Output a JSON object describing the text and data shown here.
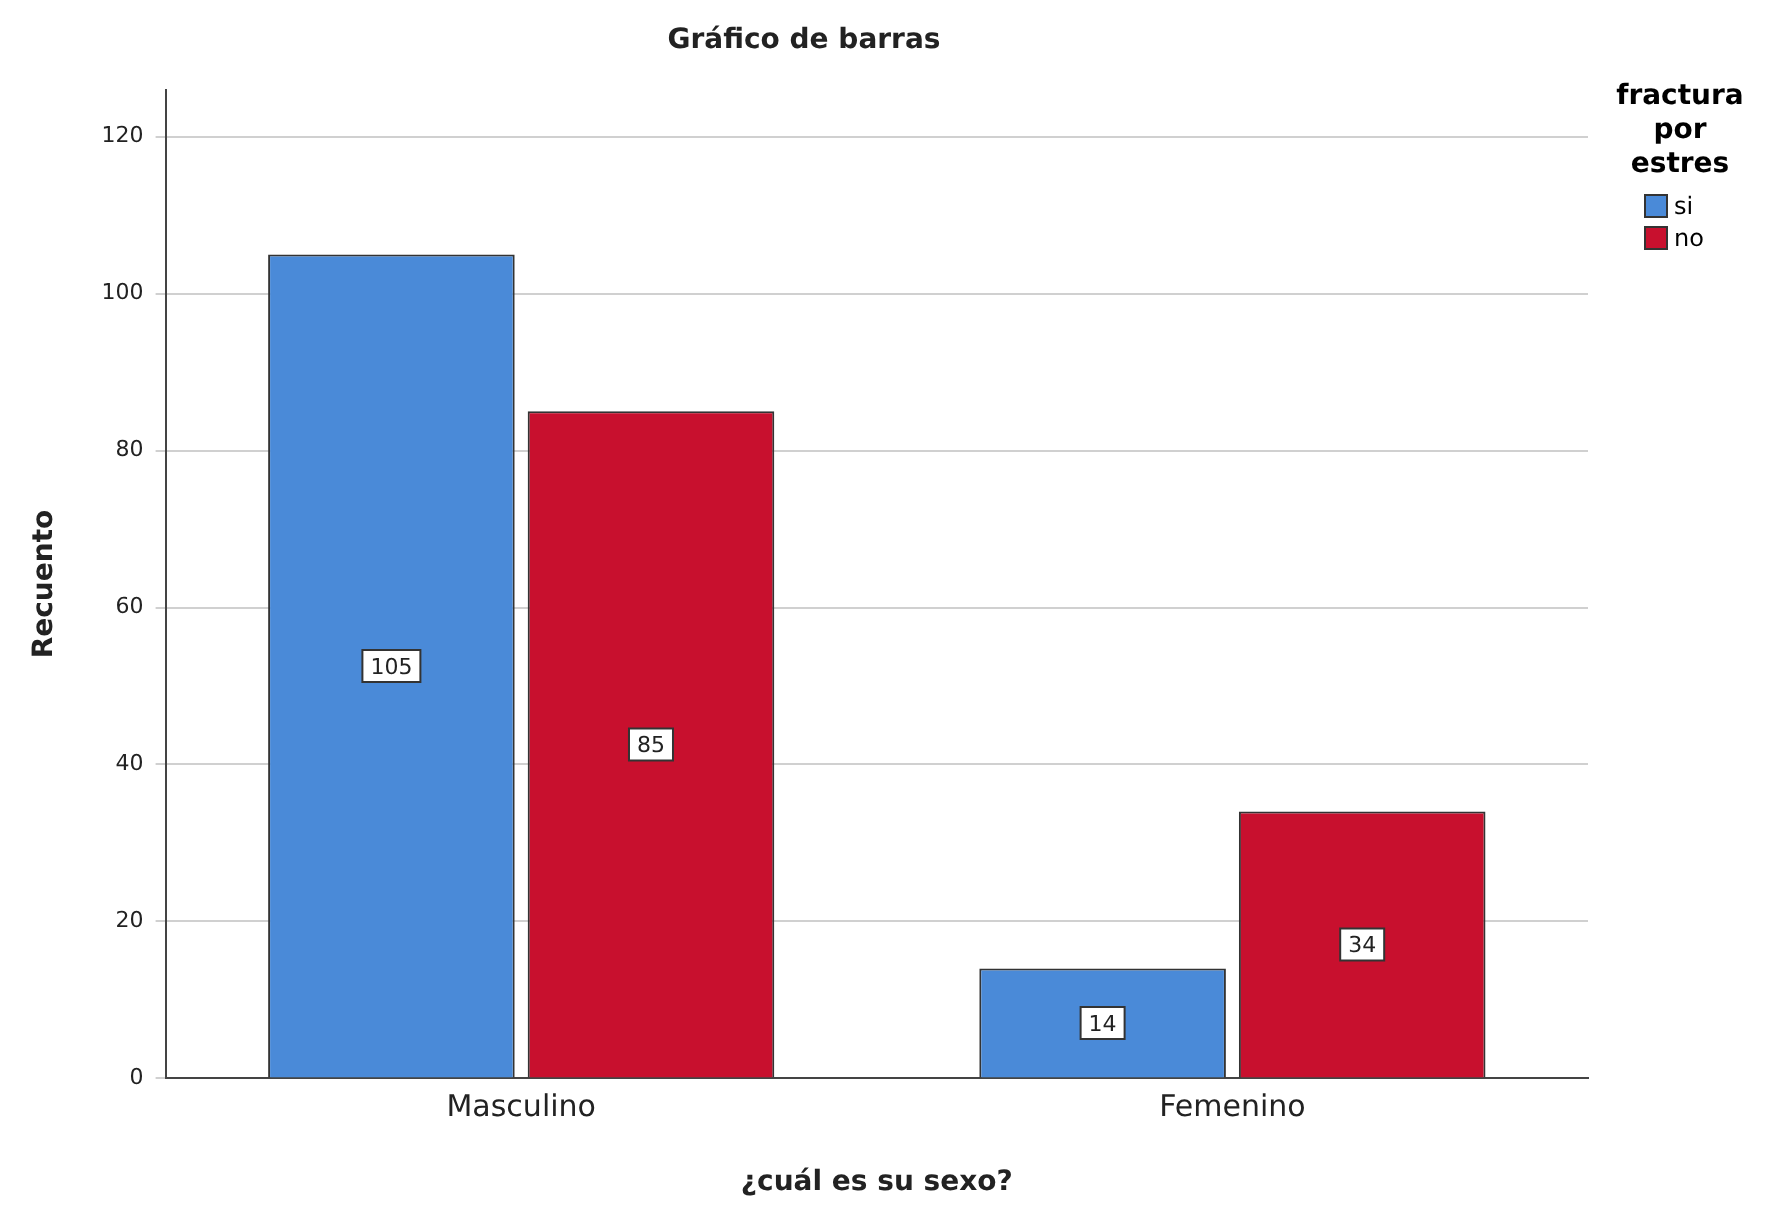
{
  "chart_data": {
    "type": "bar",
    "title": "Gráfico de barras",
    "xlabel": "¿cuál es su sexo?",
    "ylabel": "Recuento",
    "legend_title": "fractura por estres",
    "categories": [
      "Masculino",
      "Femenino"
    ],
    "series": [
      {
        "name": "si",
        "color": "#4a8ad8",
        "values": [
          105,
          14
        ]
      },
      {
        "name": "no",
        "color": "#c8102e",
        "values": [
          85,
          34
        ]
      }
    ],
    "ylim": [
      0,
      126
    ],
    "yticks": [
      0,
      20,
      40,
      60,
      80,
      100,
      120
    ],
    "grid": "y",
    "legend": "top right",
    "data_labels": true
  }
}
